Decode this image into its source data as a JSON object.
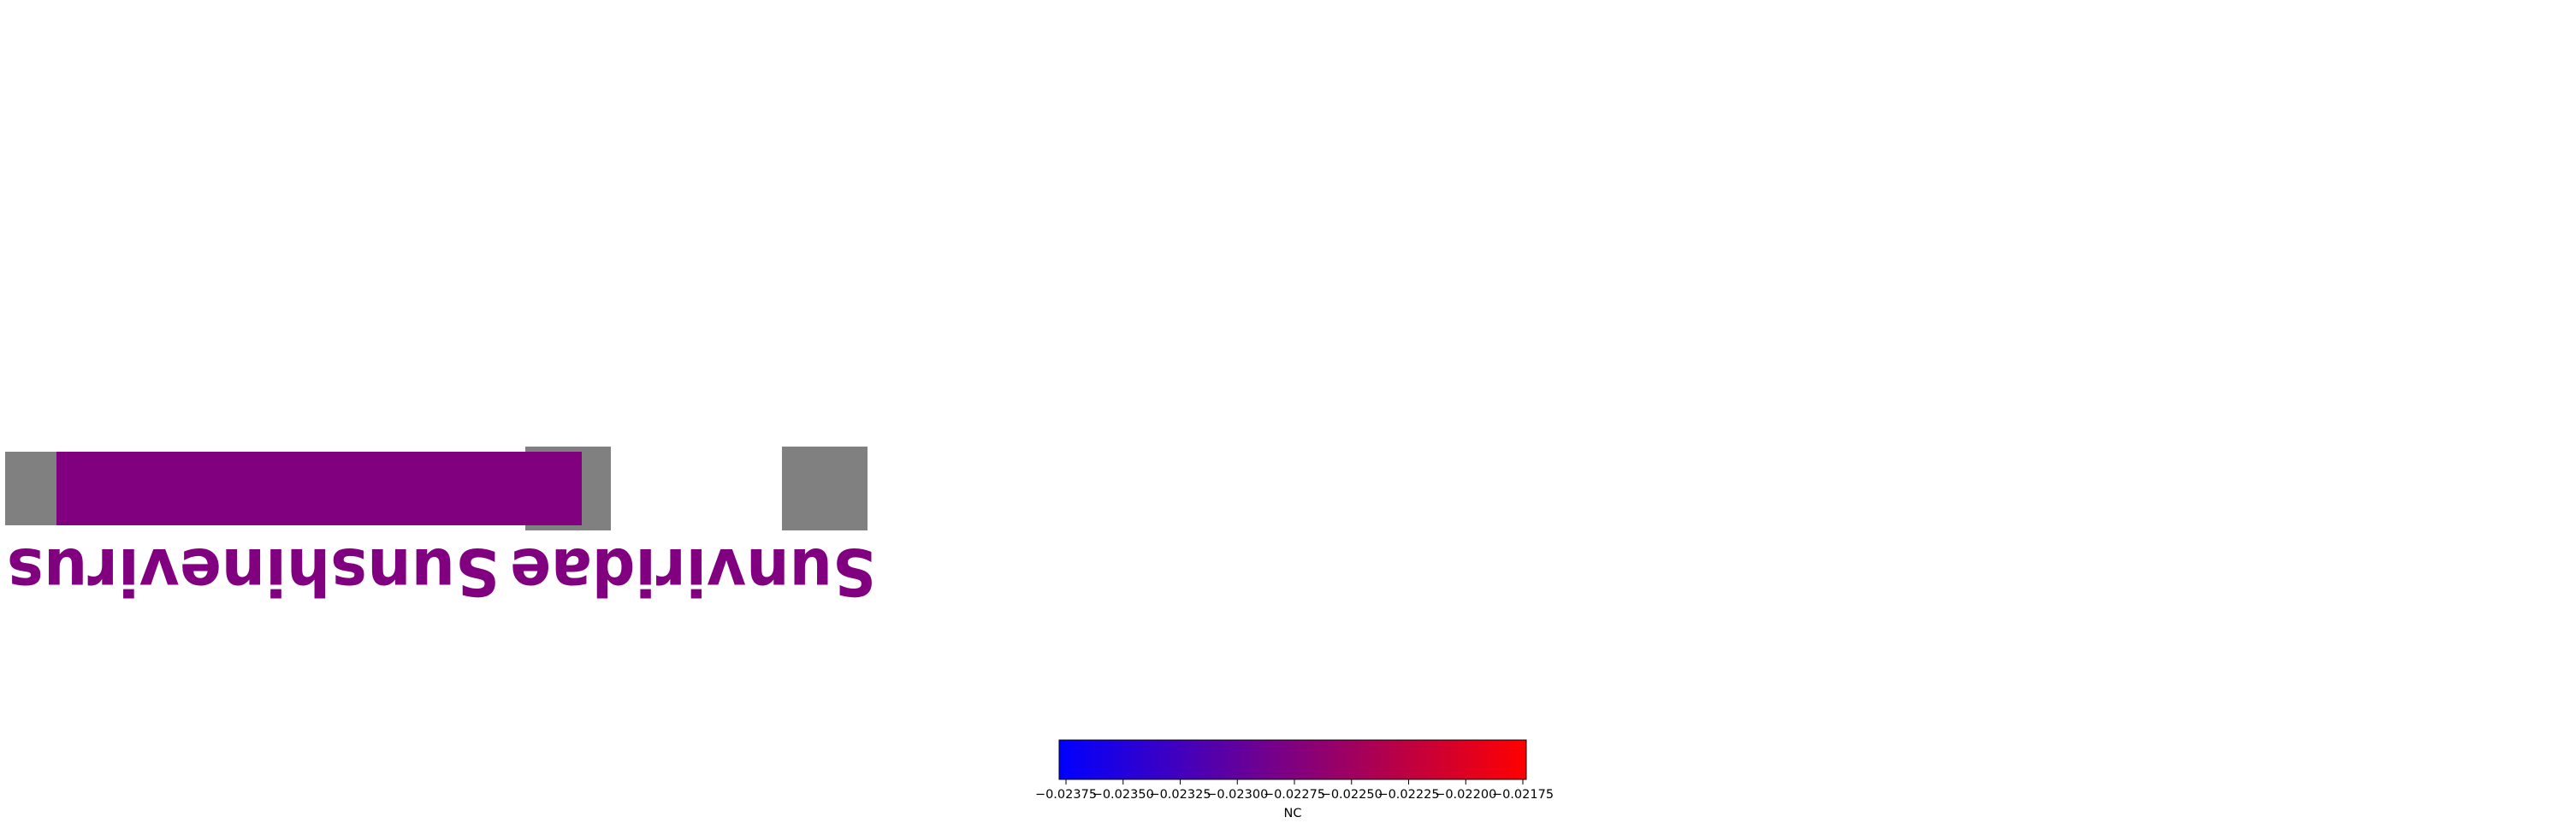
{
  "colors": {
    "taxon_text": "#800080",
    "bar_fill": "#800080",
    "placeholder_gray": "#808080",
    "colormap_low": "#0000ff",
    "colormap_mid": "#800080",
    "colormap_high": "#ff0000"
  },
  "taxa": {
    "family": {
      "name": "Sunviridae",
      "rank": "family"
    },
    "genus": {
      "name": "Sunshinevirus",
      "rank": "genus"
    }
  },
  "colorbar": {
    "label": "NC",
    "range": [
      -0.0238,
      -0.0217
    ],
    "tick_labels": [
      "−0.02375",
      "−0.02350",
      "−0.02325",
      "−0.02300",
      "−0.02275",
      "−0.02250",
      "−0.02225",
      "−0.02200",
      "−0.02175"
    ]
  }
}
